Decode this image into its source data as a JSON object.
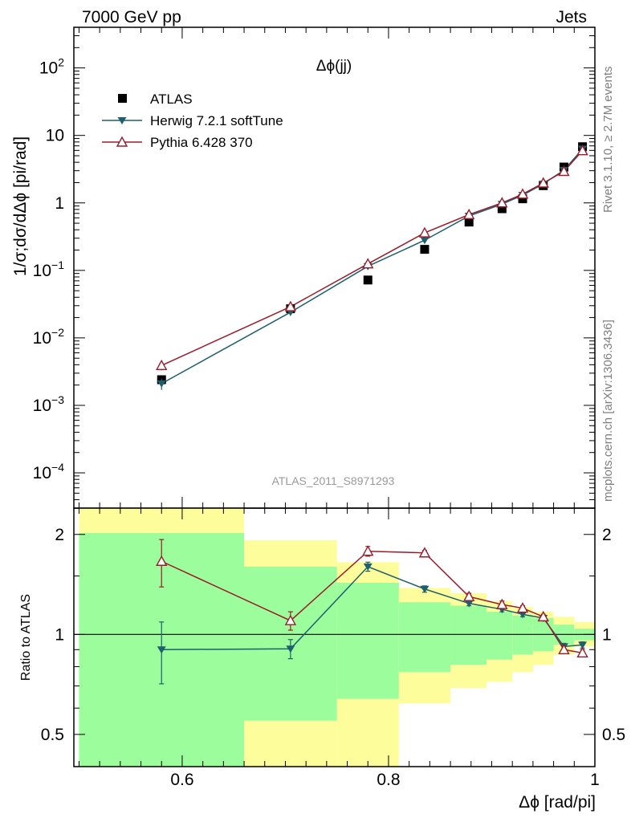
{
  "header": {
    "left": "7000 GeV pp",
    "right": "Jets"
  },
  "side_labels": {
    "rivet": "Rivet 3.1.10, ≥ 2.7M events",
    "mcplots": "mcplots.cern.ch [arXiv:1306.3436]"
  },
  "analysis_id": "ATLAS_2011_S8971293",
  "observable": "Δϕ(jj)",
  "colors": {
    "atlas": "#000000",
    "herwig": "#1f5f6e",
    "pythia": "#9b1b2a",
    "band_inner": "#9bfd9b",
    "band_outer": "#fdfd9b"
  },
  "chart_data": [
    {
      "type": "scatter",
      "panel": "main",
      "ylabel": "1/σ;dσ/dΔϕ [pi/rad]",
      "yscale": "log",
      "ylim": [
        3e-05,
        400
      ],
      "xlim": [
        0.495,
        1.0
      ],
      "ytick_labels": [
        {
          "value": 100,
          "mantissa": "10",
          "exp": "2"
        },
        {
          "value": 10,
          "mantissa": "10",
          "exp": ""
        },
        {
          "value": 1,
          "mantissa": "1",
          "exp": ""
        },
        {
          "value": 0.1,
          "mantissa": "10",
          "exp": "−1"
        },
        {
          "value": 0.01,
          "mantissa": "10",
          "exp": "−2"
        },
        {
          "value": 0.001,
          "mantissa": "10",
          "exp": "−3"
        },
        {
          "value": 0.0001,
          "mantissa": "10",
          "exp": "−4"
        }
      ],
      "series": [
        {
          "name": "ATLAS",
          "key": "atlas",
          "x": [
            0.58,
            0.705,
            0.78,
            0.835,
            0.878,
            0.91,
            0.93,
            0.95,
            0.97,
            0.988
          ],
          "y": [
            0.0024,
            0.027,
            0.072,
            0.205,
            0.52,
            0.82,
            1.15,
            1.8,
            3.4,
            6.8
          ]
        },
        {
          "name": "Herwig 7.2.1 softTune",
          "key": "herwig",
          "x": [
            0.58,
            0.705,
            0.78,
            0.835,
            0.878,
            0.91,
            0.93,
            0.95,
            0.97,
            0.988
          ],
          "y": [
            0.0021,
            0.024,
            0.115,
            0.28,
            0.64,
            0.96,
            1.3,
            1.92,
            3.05,
            6.3
          ],
          "yerr": [
            0.0004,
            0.0016,
            0.005,
            0.01,
            0.015,
            0.02,
            0.03,
            0.04,
            0.06,
            0.1
          ]
        },
        {
          "name": "Pythia 6.428 370",
          "key": "pythia",
          "x": [
            0.58,
            0.705,
            0.78,
            0.835,
            0.878,
            0.91,
            0.93,
            0.95,
            0.97,
            0.988
          ],
          "y": [
            0.0039,
            0.029,
            0.125,
            0.36,
            0.67,
            1.0,
            1.35,
            1.97,
            2.93,
            5.95
          ],
          "yerr": [
            0.0006,
            0.002,
            0.006,
            0.012,
            0.015,
            0.02,
            0.03,
            0.04,
            0.06,
            0.1
          ]
        }
      ]
    },
    {
      "type": "line",
      "panel": "ratio",
      "ylabel": "Ratio to ATLAS",
      "xlabel": "Δϕ [rad/pi]",
      "yscale": "log",
      "ylim": [
        0.4,
        2.4
      ],
      "xlim": [
        0.495,
        1.0
      ],
      "xticks": [
        0.6,
        0.8,
        1.0
      ],
      "xtick_labels": [
        "0.6",
        "0.8",
        "1"
      ],
      "yticks": [
        0.5,
        1,
        2
      ],
      "ytick_labels": [
        "0.5",
        "1",
        "2"
      ],
      "bins": [
        {
          "lo": 0.5,
          "hi": 0.66,
          "inner": [
            0.4,
            2.02
          ],
          "outer": [
            0.4,
            2.4
          ]
        },
        {
          "lo": 0.66,
          "hi": 0.75,
          "inner": [
            0.4,
            1.6
          ],
          "outer": [
            0.4,
            1.92
          ]
        },
        {
          "lo": 0.75,
          "hi": 0.81,
          "inner": [
            0.4,
            1.43
          ],
          "outer": [
            0.4,
            1.65
          ]
        },
        {
          "lo": 0.81,
          "hi": 0.86,
          "inner": [
            0.4,
            1.25
          ],
          "outer": [
            0.4,
            1.38
          ]
        },
        {
          "lo": 0.86,
          "hi": 0.895,
          "inner": [
            0.4,
            1.22
          ],
          "outer": [
            0.4,
            1.33
          ]
        },
        {
          "lo": 0.895,
          "hi": 0.92,
          "inner": [
            0.4,
            1.17
          ],
          "outer": [
            0.4,
            1.26
          ]
        },
        {
          "lo": 0.92,
          "hi": 0.94,
          "inner": [
            0.4,
            1.14
          ],
          "outer": [
            0.4,
            1.21
          ]
        },
        {
          "lo": 0.94,
          "hi": 0.96,
          "inner": [
            0.4,
            1.12
          ],
          "outer": [
            0.4,
            1.17
          ]
        },
        {
          "lo": 0.96,
          "hi": 0.98,
          "inner": [
            0.4,
            1.07
          ],
          "outer": [
            0.4,
            1.13
          ]
        },
        {
          "lo": 0.98,
          "hi": 1.0,
          "inner": [
            0.4,
            1.04
          ],
          "outer": [
            0.4,
            1.09
          ]
        }
      ],
      "bins_lower": [
        {
          "lo": 0.5,
          "hi": 0.66,
          "inner_lo": 0.4,
          "outer_lo": 0.4
        },
        {
          "lo": 0.66,
          "hi": 0.75,
          "inner_lo": 0.55,
          "outer_lo": 0.4
        },
        {
          "lo": 0.75,
          "hi": 0.81,
          "inner_lo": 0.64,
          "outer_lo": 0.4
        },
        {
          "lo": 0.81,
          "hi": 0.86,
          "inner_lo": 0.77,
          "outer_lo": 0.62
        },
        {
          "lo": 0.86,
          "hi": 0.895,
          "inner_lo": 0.81,
          "outer_lo": 0.69
        },
        {
          "lo": 0.895,
          "hi": 0.92,
          "inner_lo": 0.84,
          "outer_lo": 0.72
        },
        {
          "lo": 0.92,
          "hi": 0.94,
          "inner_lo": 0.87,
          "outer_lo": 0.77
        },
        {
          "lo": 0.94,
          "hi": 0.96,
          "inner_lo": 0.89,
          "outer_lo": 0.81
        },
        {
          "lo": 0.96,
          "hi": 0.98,
          "inner_lo": 0.93,
          "outer_lo": 0.87
        },
        {
          "lo": 0.98,
          "hi": 1.0,
          "inner_lo": 0.96,
          "outer_lo": 0.92
        }
      ],
      "series": [
        {
          "name": "Herwig 7.2.1 softTune",
          "key": "herwig",
          "x": [
            0.58,
            0.705,
            0.78,
            0.835,
            0.878,
            0.91,
            0.93,
            0.95,
            0.97,
            0.988
          ],
          "y": [
            0.9,
            0.905,
            1.6,
            1.37,
            1.24,
            1.19,
            1.15,
            1.12,
            0.92,
            0.93
          ],
          "yerr": [
            0.19,
            0.06,
            0.05,
            0.03,
            0.02,
            0.02,
            0.02,
            0.02,
            0.02,
            0.02
          ]
        },
        {
          "name": "Pythia 6.428 370",
          "key": "pythia",
          "x": [
            0.58,
            0.705,
            0.78,
            0.835,
            0.878,
            0.91,
            0.93,
            0.95,
            0.97,
            0.988
          ],
          "y": [
            1.66,
            1.1,
            1.78,
            1.76,
            1.3,
            1.23,
            1.2,
            1.13,
            0.9,
            0.88
          ],
          "yerr": [
            0.27,
            0.07,
            0.06,
            0.03,
            0.03,
            0.03,
            0.02,
            0.02,
            0.02,
            0.02
          ]
        }
      ]
    }
  ]
}
